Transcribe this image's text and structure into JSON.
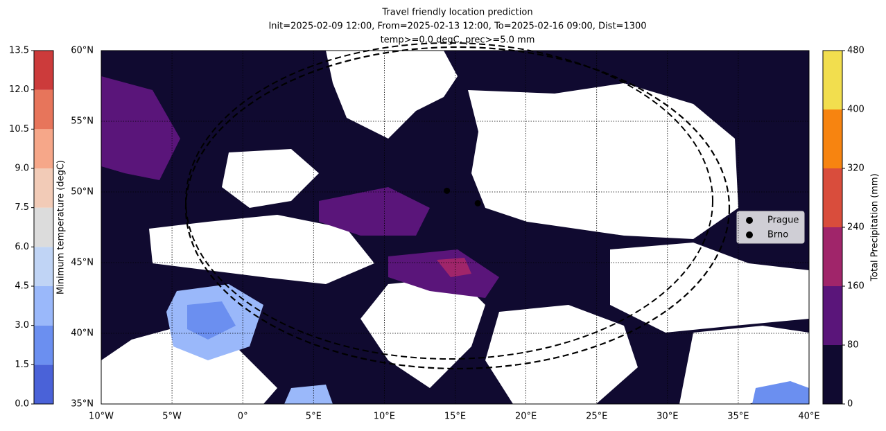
{
  "title": [
    "Travel friendly location prediction",
    "Init=2025-02-09 12:00, From=2025-02-13 12:00, To=2025-02-16 09:00, Dist=1300",
    "temp>=0.0 degC, prec>=5.0 mm"
  ],
  "map": {
    "lonlim": [
      -10,
      40
    ],
    "latlim": [
      35,
      60
    ],
    "lon_ticks": [
      {
        "value": -10,
        "label": "10°W"
      },
      {
        "value": -5,
        "label": "5°W"
      },
      {
        "value": 0,
        "label": "0°"
      },
      {
        "value": 5,
        "label": "5°E"
      },
      {
        "value": 10,
        "label": "10°E"
      },
      {
        "value": 15,
        "label": "15°E"
      },
      {
        "value": 20,
        "label": "20°E"
      },
      {
        "value": 25,
        "label": "25°E"
      },
      {
        "value": 30,
        "label": "30°E"
      },
      {
        "value": 35,
        "label": "35°E"
      },
      {
        "value": 40,
        "label": "40°E"
      }
    ],
    "lat_ticks": [
      {
        "value": 35,
        "label": "35°N"
      },
      {
        "value": 40,
        "label": "40°N"
      },
      {
        "value": 45,
        "label": "45°N"
      },
      {
        "value": 50,
        "label": "50°N"
      },
      {
        "value": 55,
        "label": "55°N"
      },
      {
        "value": 60,
        "label": "60°N"
      }
    ],
    "points": [
      {
        "name": "Prague",
        "lon": 14.42,
        "lat": 50.08
      },
      {
        "name": "Brno",
        "lon": 16.6,
        "lat": 49.2
      }
    ],
    "marker_color": "#000000"
  },
  "temp_colorbar": {
    "label": "Minimum temperature (degC)",
    "ticks": [
      {
        "value": 0,
        "label": "0.0"
      },
      1.5,
      {
        "value": 3,
        "label": "3.0"
      },
      4.5,
      {
        "value": 6,
        "label": "6.0"
      },
      7.5,
      {
        "value": 9,
        "label": "9.0"
      },
      10.5,
      {
        "value": 12,
        "label": "12.0"
      },
      13.5
    ],
    "colors": [
      "#4a62d8",
      "#6b8ff0",
      "#9ab8fa",
      "#c0d4f5",
      "#dcdcdc",
      "#f2cbb7",
      "#f6a789",
      "#e7755b",
      "#cc3b3b"
    ]
  },
  "precip_colorbar": {
    "label": "Total Precipitation (mm)",
    "ticks": [
      0,
      80,
      160,
      240,
      320,
      400,
      480
    ],
    "colors": [
      "#100a30",
      "#5a157a",
      "#a0256a",
      "#d94d3c",
      "#f78410",
      "#f2de4e"
    ]
  }
}
